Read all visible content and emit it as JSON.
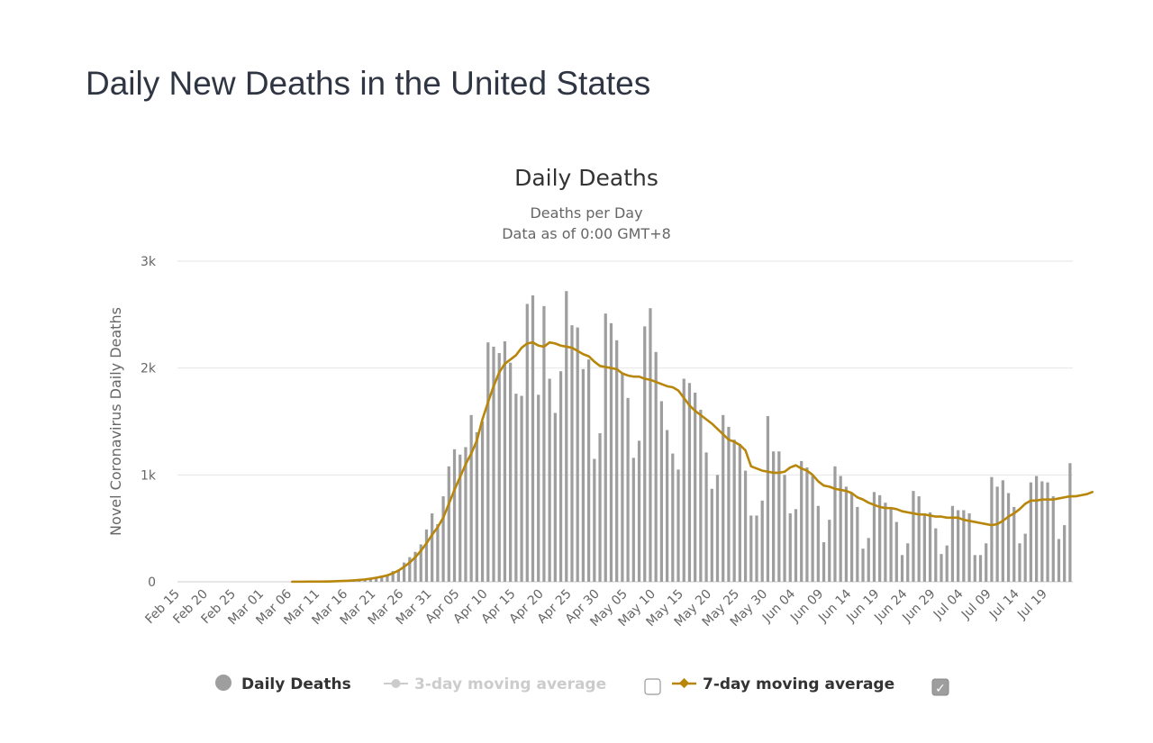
{
  "page": {
    "title": "Daily New Deaths in the United States"
  },
  "colors": {
    "bar": "#9e9e9e",
    "line7": "#b8860b",
    "line3_disabled": "#cccccc",
    "grid": "#e6e6e6",
    "checkbox_checked": "#9e9e9e"
  },
  "chart_data": {
    "type": "bar",
    "title": "Daily Deaths",
    "subtitle": [
      "Deaths per Day",
      "Data as of 0:00 GMT+8"
    ],
    "ylabel": "Novel Coronavirus Daily Deaths",
    "ylim": [
      0,
      3000
    ],
    "yticks": [
      0,
      1000,
      2000,
      3000
    ],
    "ytick_labels": [
      "0",
      "1k",
      "2k",
      "3k"
    ],
    "x_start": "Feb 15",
    "x_end": "Jul 21",
    "xtick_labels": [
      "Feb 15",
      "Feb 20",
      "Feb 25",
      "Mar 01",
      "Mar 06",
      "Mar 11",
      "Mar 16",
      "Mar 21",
      "Mar 26",
      "Mar 31",
      "Apr 05",
      "Apr 10",
      "Apr 15",
      "Apr 20",
      "Apr 25",
      "Apr 30",
      "May 05",
      "May 10",
      "May 15",
      "May 20",
      "May 25",
      "May 30",
      "Jun 04",
      "Jun 09",
      "Jun 14",
      "Jun 19",
      "Jun 24",
      "Jun 29",
      "Jul 04",
      "Jul 09",
      "Jul 14",
      "Jul 19"
    ],
    "grid": true,
    "legend_position": "bottom-center",
    "series": [
      {
        "name": "Daily Deaths",
        "kind": "bar",
        "values": [
          0,
          0,
          0,
          0,
          0,
          0,
          0,
          0,
          0,
          0,
          0,
          0,
          0,
          0,
          0,
          0,
          0,
          0,
          0,
          0,
          1,
          0,
          1,
          1,
          2,
          2,
          3,
          4,
          6,
          8,
          10,
          12,
          20,
          25,
          30,
          45,
          55,
          58,
          100,
          115,
          180,
          230,
          280,
          350,
          490,
          640,
          540,
          800,
          1080,
          1240,
          1190,
          1260,
          1560,
          1400,
          1500,
          2240,
          2200,
          2140,
          2250,
          2050,
          1760,
          1740,
          2600,
          2680,
          1750,
          2580,
          1900,
          1580,
          1970,
          2720,
          2400,
          2380,
          1990,
          2080,
          1150,
          1390,
          2510,
          2420,
          2260,
          1950,
          1720,
          1160,
          1320,
          2390,
          2560,
          2150,
          1690,
          1420,
          1200,
          1050,
          1900,
          1860,
          1770,
          1610,
          1210,
          870,
          1000,
          1560,
          1450,
          1330,
          1290,
          1040,
          620,
          620,
          760,
          1550,
          1220,
          1220,
          1000,
          640,
          680,
          1130,
          1070,
          990,
          710,
          370,
          580,
          1080,
          990,
          890,
          830,
          700,
          310,
          410,
          840,
          810,
          740,
          690,
          560,
          250,
          360,
          850,
          800,
          640,
          650,
          500,
          260,
          340,
          710,
          670,
          670,
          640,
          250,
          250,
          360,
          980,
          890,
          950,
          830,
          700,
          360,
          450,
          930,
          990,
          940,
          930,
          800,
          400,
          530,
          1110
        ]
      },
      {
        "name": "3-day moving average",
        "kind": "line",
        "visible": false
      },
      {
        "name": "7-day moving average",
        "kind": "line",
        "values": [
          0,
          0,
          0,
          0,
          0,
          0,
          0,
          0,
          0,
          0,
          0,
          0,
          0,
          0,
          0,
          0,
          0,
          0,
          0,
          0,
          1,
          1,
          1,
          2,
          2,
          2,
          3,
          4,
          6,
          8,
          10,
          13,
          17,
          22,
          29,
          38,
          48,
          60,
          80,
          105,
          140,
          180,
          230,
          290,
          360,
          440,
          510,
          600,
          730,
          860,
          980,
          1100,
          1200,
          1320,
          1520,
          1680,
          1830,
          1960,
          2040,
          2080,
          2120,
          2190,
          2230,
          2240,
          2210,
          2200,
          2240,
          2230,
          2210,
          2200,
          2190,
          2160,
          2130,
          2110,
          2060,
          2020,
          2010,
          2000,
          1990,
          1950,
          1930,
          1920,
          1920,
          1900,
          1890,
          1870,
          1850,
          1830,
          1820,
          1790,
          1720,
          1650,
          1600,
          1560,
          1520,
          1480,
          1430,
          1380,
          1330,
          1310,
          1280,
          1230,
          1080,
          1060,
          1040,
          1030,
          1020,
          1020,
          1030,
          1070,
          1090,
          1060,
          1040,
          1000,
          940,
          900,
          890,
          870,
          860,
          850,
          830,
          790,
          770,
          740,
          720,
          700,
          690,
          690,
          680,
          660,
          650,
          640,
          630,
          630,
          620,
          610,
          610,
          600,
          600,
          600,
          580,
          570,
          560,
          550,
          540,
          530,
          540,
          570,
          610,
          640,
          680,
          730,
          760,
          760,
          770,
          770,
          770,
          780,
          790,
          800,
          800,
          810,
          820,
          840
        ]
      }
    ]
  },
  "legend": {
    "items": [
      {
        "label": "Daily Deaths",
        "icon": "circle-marker",
        "color": "#9e9e9e",
        "enabled": true
      },
      {
        "label": "3-day moving average",
        "icon": "line-marker",
        "color": "#cccccc",
        "enabled": false
      },
      {
        "label": "7-day moving average",
        "icon": "line-diamond-marker",
        "color": "#b8860b",
        "enabled": true
      }
    ],
    "checkboxes": [
      {
        "for": "3-day moving average",
        "checked": false
      },
      {
        "for": "7-day moving average",
        "checked": true
      }
    ],
    "check_glyph": "✓"
  }
}
